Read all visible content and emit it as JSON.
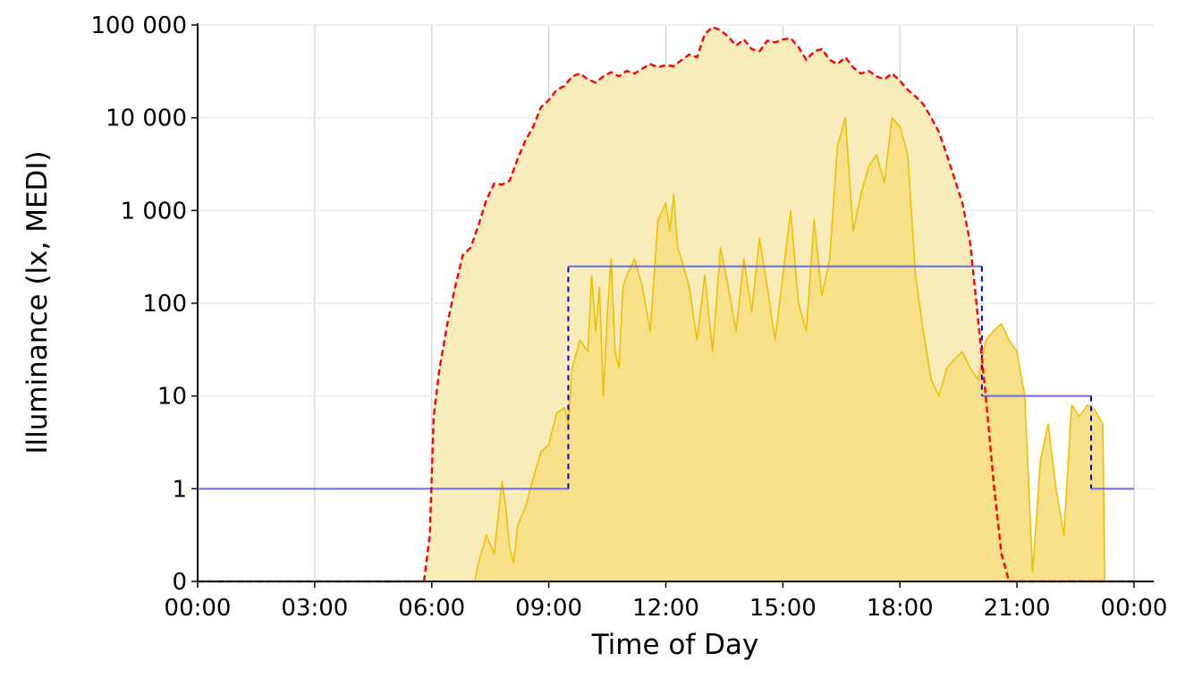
{
  "chart_data": {
    "type": "area",
    "title": "",
    "xlabel": "Time of Day",
    "ylabel": "Illuminance (lx, MEDI)",
    "y_scale": "symlog",
    "grid": true,
    "legend": "none",
    "x_ticks": [
      0,
      3,
      6,
      9,
      12,
      15,
      18,
      21,
      24
    ],
    "x_tick_labels": [
      "00:00",
      "03:00",
      "06:00",
      "09:00",
      "12:00",
      "15:00",
      "18:00",
      "21:00",
      "00:00"
    ],
    "y_ticks": [
      0,
      1,
      10,
      100,
      1000,
      10000,
      100000
    ],
    "y_tick_labels": [
      "0",
      "1",
      "10",
      "100",
      "1 000",
      "10 000",
      "100 000"
    ],
    "xlim": [
      0,
      24
    ],
    "ylim": [
      0,
      100000
    ],
    "series": [
      {
        "role": "daylight potential",
        "style": "dashed line with light fill",
        "color": "#ff0000",
        "fill": "#f9ecbb",
        "x": [
          0,
          5.8,
          5.95,
          6.05,
          6.2,
          6.4,
          6.6,
          6.8,
          7.0,
          7.2,
          7.4,
          7.6,
          7.8,
          8.0,
          8.2,
          8.4,
          8.6,
          8.8,
          9.0,
          9.2,
          9.4,
          9.6,
          9.8,
          10.0,
          10.2,
          10.4,
          10.6,
          10.8,
          11.0,
          11.2,
          11.4,
          11.6,
          11.8,
          12.0,
          12.2,
          12.4,
          12.6,
          12.8,
          13.0,
          13.2,
          13.4,
          13.6,
          13.8,
          14.0,
          14.2,
          14.4,
          14.6,
          14.8,
          15.0,
          15.2,
          15.4,
          15.6,
          15.8,
          16.0,
          16.2,
          16.4,
          16.6,
          16.8,
          17.0,
          17.2,
          17.4,
          17.6,
          17.8,
          18.0,
          18.2,
          18.4,
          18.6,
          18.8,
          19.0,
          19.2,
          19.4,
          19.6,
          19.8,
          20.0,
          20.2,
          20.4,
          20.6,
          20.8,
          20.9,
          24
        ],
        "values": [
          0,
          0,
          0.5,
          6,
          20,
          60,
          150,
          330,
          400,
          700,
          1300,
          1950,
          1900,
          2100,
          3600,
          5700,
          8000,
          13000,
          15500,
          20000,
          22000,
          28000,
          30000,
          26000,
          24000,
          28000,
          31000,
          28000,
          32000,
          30000,
          34000,
          38000,
          35000,
          37000,
          36000,
          42000,
          48000,
          45000,
          80000,
          95000,
          88000,
          75000,
          60000,
          70000,
          55000,
          52000,
          68000,
          65000,
          70000,
          72000,
          58000,
          42000,
          52000,
          55000,
          42000,
          38000,
          45000,
          35000,
          30000,
          32000,
          28000,
          26000,
          30000,
          25000,
          20000,
          17000,
          14000,
          10000,
          7000,
          4000,
          2200,
          1200,
          450,
          70,
          10,
          1.2,
          0.3,
          0,
          0,
          0
        ]
      },
      {
        "role": "measured illuminance",
        "style": "solid line with fill",
        "color": "#f0c000",
        "fill": "#f6e08a",
        "x": [
          0,
          7.1,
          7.2,
          7.4,
          7.6,
          7.8,
          7.9,
          8.0,
          8.1,
          8.2,
          8.4,
          8.6,
          8.8,
          9.0,
          9.2,
          9.4,
          9.5,
          9.6,
          9.8,
          10.0,
          10.1,
          10.2,
          10.3,
          10.4,
          10.5,
          10.6,
          10.7,
          10.8,
          10.9,
          11.0,
          11.2,
          11.4,
          11.6,
          11.8,
          12.0,
          12.1,
          12.2,
          12.3,
          12.4,
          12.6,
          12.8,
          13.0,
          13.2,
          13.4,
          13.6,
          13.8,
          14.0,
          14.2,
          14.4,
          14.6,
          14.8,
          15.0,
          15.2,
          15.4,
          15.6,
          15.8,
          16.0,
          16.2,
          16.4,
          16.6,
          16.8,
          17.0,
          17.2,
          17.4,
          17.6,
          17.8,
          18.0,
          18.2,
          18.4,
          18.6,
          18.8,
          19.0,
          19.2,
          19.4,
          19.6,
          19.8,
          20.0,
          20.2,
          20.4,
          20.6,
          20.8,
          21.0,
          21.2,
          21.4,
          21.6,
          21.8,
          22.0,
          22.2,
          22.4,
          22.6,
          22.8,
          23.0,
          23.2,
          23.25,
          24
        ],
        "values": [
          0,
          0,
          0.2,
          0.5,
          0.3,
          1.2,
          0.8,
          0.35,
          0.2,
          0.6,
          0.8,
          1.3,
          2.5,
          3,
          6.5,
          7.5,
          5,
          20,
          40,
          30,
          200,
          50,
          150,
          10,
          80,
          300,
          30,
          20,
          150,
          200,
          300,
          150,
          50,
          800,
          1200,
          600,
          1500,
          400,
          300,
          150,
          40,
          200,
          30,
          400,
          150,
          50,
          300,
          80,
          500,
          150,
          40,
          200,
          1000,
          100,
          50,
          800,
          120,
          300,
          5000,
          10000,
          600,
          1500,
          3000,
          4000,
          2000,
          10000,
          8000,
          4000,
          200,
          50,
          15,
          10,
          20,
          25,
          30,
          20,
          15,
          40,
          50,
          60,
          40,
          30,
          10,
          0.1,
          2,
          5,
          1,
          0.5,
          8,
          6,
          8,
          7,
          5,
          0,
          0
        ]
      },
      {
        "role": "recommended maximum",
        "style": "solid step line with dashed verticals",
        "color": "#0000ff",
        "x": [
          0,
          9.5,
          9.5,
          20.1,
          20.1,
          22.9,
          22.9,
          24
        ],
        "values": [
          1,
          1,
          250,
          250,
          10,
          10,
          1,
          1
        ]
      }
    ]
  }
}
